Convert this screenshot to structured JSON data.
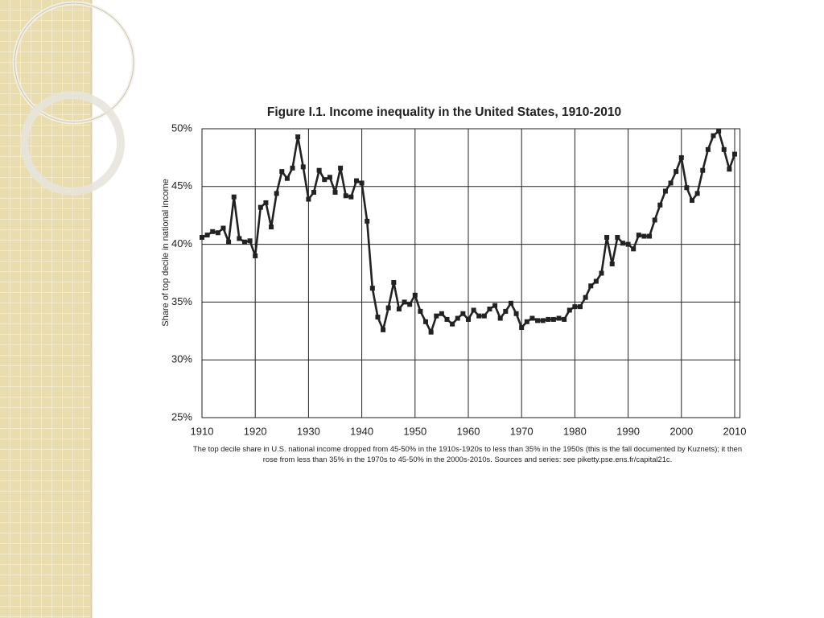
{
  "chart_data": {
    "type": "line",
    "title": "Figure I.1. Income inequality in the United States, 1910-2010",
    "y_label": "Share of top decile in national income",
    "note": "The top decile share in U.S. national income dropped from 45-50% in the 1910s-1920s to less than 35% in the 1950s (this is the fall documented by Kuznets); it then rose from less than 35% in the 1970s to 45-50% in the 2000s-2010s. Sources and series: see piketty.pse.ens.fr/capital21c.",
    "x": [
      1910,
      1911,
      1912,
      1913,
      1914,
      1915,
      1916,
      1917,
      1918,
      1919,
      1920,
      1921,
      1922,
      1923,
      1924,
      1925,
      1926,
      1927,
      1928,
      1929,
      1930,
      1931,
      1932,
      1933,
      1934,
      1935,
      1936,
      1937,
      1938,
      1939,
      1940,
      1941,
      1942,
      1943,
      1944,
      1945,
      1946,
      1947,
      1948,
      1949,
      1950,
      1951,
      1952,
      1953,
      1954,
      1955,
      1956,
      1957,
      1958,
      1959,
      1960,
      1961,
      1962,
      1963,
      1964,
      1965,
      1966,
      1967,
      1968,
      1969,
      1970,
      1971,
      1972,
      1973,
      1974,
      1975,
      1976,
      1977,
      1978,
      1979,
      1980,
      1981,
      1982,
      1983,
      1984,
      1985,
      1986,
      1987,
      1988,
      1989,
      1990,
      1991,
      1992,
      1993,
      1994,
      1995,
      1996,
      1997,
      1998,
      1999,
      2000,
      2001,
      2002,
      2003,
      2004,
      2005,
      2006,
      2007,
      2008,
      2009,
      2010
    ],
    "values": [
      40.6,
      40.8,
      41.1,
      41.0,
      41.4,
      40.2,
      44.1,
      40.5,
      40.2,
      40.3,
      39.0,
      43.2,
      43.6,
      41.5,
      44.4,
      46.3,
      45.7,
      46.6,
      49.3,
      46.7,
      43.9,
      44.5,
      46.4,
      45.6,
      45.8,
      44.5,
      46.6,
      44.2,
      44.1,
      45.5,
      45.3,
      42.0,
      36.2,
      33.7,
      32.6,
      34.5,
      36.7,
      34.4,
      35.0,
      34.8,
      35.6,
      34.2,
      33.3,
      32.4,
      33.8,
      34.0,
      33.5,
      33.1,
      33.6,
      34.0,
      33.5,
      34.3,
      33.8,
      33.8,
      34.4,
      34.7,
      33.6,
      34.2,
      34.9,
      34.0,
      32.8,
      33.3,
      33.6,
      33.4,
      33.4,
      33.5,
      33.5,
      33.6,
      33.5,
      34.3,
      34.6,
      34.6,
      35.4,
      36.4,
      36.8,
      37.5,
      40.6,
      38.3,
      40.6,
      40.1,
      40.0,
      39.6,
      40.8,
      40.7,
      40.7,
      42.1,
      43.4,
      44.6,
      45.3,
      46.3,
      47.5,
      44.9,
      43.8,
      44.4,
      46.4,
      48.2,
      49.4,
      49.8,
      48.2,
      46.5,
      47.8
    ],
    "color": "#222222",
    "xlim": [
      1910,
      2011
    ],
    "xticks": [
      1910,
      1920,
      1930,
      1940,
      1950,
      1960,
      1970,
      1980,
      1990,
      2000,
      2010
    ],
    "ylim": [
      25,
      50
    ],
    "yticks": [
      {
        "value": 25,
        "label": "25%"
      },
      {
        "value": 30,
        "label": "30%"
      },
      {
        "value": 35,
        "label": "35%"
      },
      {
        "value": 40,
        "label": "40%"
      },
      {
        "value": 45,
        "label": "45%"
      },
      {
        "value": 50,
        "label": "50%"
      }
    ],
    "grid": true
  }
}
